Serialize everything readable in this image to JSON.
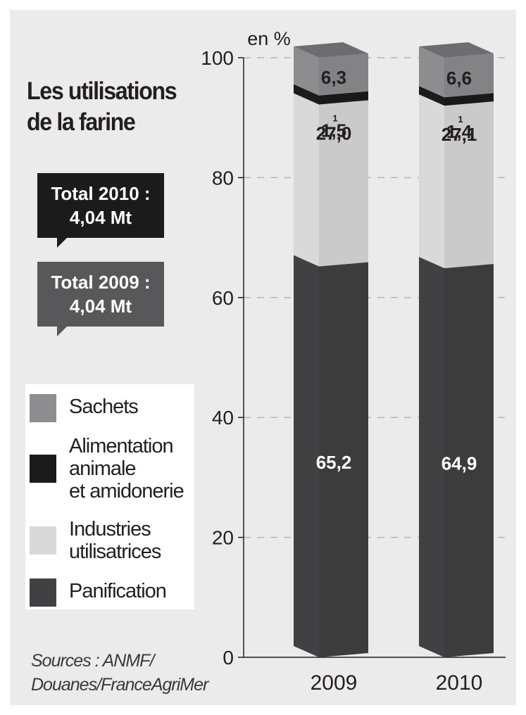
{
  "title_line1": "Les utilisations",
  "title_line2": "de la farine",
  "total_2010_line1": "Total 2010 :",
  "total_2010_line2": "4,04 Mt",
  "total_2009_line1": "Total 2009 :",
  "total_2009_line2": "4,04 Mt",
  "sources_line1": "Sources : ANMF/",
  "sources_line2": "Douanes/FranceAgriMer",
  "legend": [
    {
      "lines": [
        "Sachets"
      ],
      "color": "#8d8d8f"
    },
    {
      "lines": [
        "Alimentation",
        "animale",
        "et amidonerie"
      ],
      "color": "#1c1b1b"
    },
    {
      "lines": [
        "Industries",
        "utilisatrices"
      ],
      "color": "#d9d9d9"
    },
    {
      "lines": [
        "Panification"
      ],
      "color": "#414042"
    }
  ],
  "chart_data": {
    "type": "bar",
    "stacked": true,
    "unit_label": "en %",
    "ylim": [
      0,
      100
    ],
    "y_ticks": [
      "0",
      "20",
      "40",
      "60",
      "80",
      "100"
    ],
    "grid": true,
    "categories": [
      "2009",
      "2010"
    ],
    "series": [
      {
        "name": "Panification",
        "values": [
          65.2,
          64.9
        ],
        "labels": [
          "65,2",
          "64,9"
        ],
        "color": "#414042",
        "label_color": "#ffffff"
      },
      {
        "name": "Industries utilisatrices",
        "values": [
          27.0,
          27.1
        ],
        "labels": [
          "27,0",
          "27,1"
        ],
        "color": "#d9d9d9",
        "label_color": "#231f20"
      },
      {
        "name": "Alimentation animale et amidonerie",
        "values": [
          1.5,
          1.4
        ],
        "labels": [
          "1,5",
          "1,4"
        ],
        "color": "#1c1b1b",
        "label_color": "#231f20"
      },
      {
        "name": "Sachets",
        "values": [
          6.3,
          6.6
        ],
        "labels": [
          "6,3",
          "6,6"
        ],
        "color": "#8d8d8f",
        "label_color": "#231f20"
      }
    ],
    "small_marker": "1"
  }
}
